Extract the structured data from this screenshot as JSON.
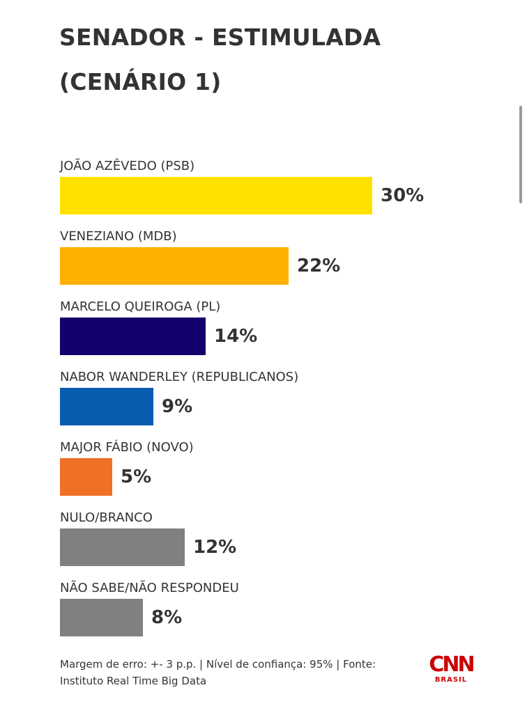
{
  "chart_data": {
    "type": "bar",
    "orientation": "horizontal",
    "title": "SENADOR - ESTIMULADA (CENÁRIO 1)",
    "categories": [
      "JOÃO AZÊVEDO (PSB)",
      "VENEZIANO (MDB)",
      "MARCELO QUEIROGA (PL)",
      "NABOR WANDERLEY (REPUBLICANOS)",
      "MAJOR FÁBIO (NOVO)",
      "NULO/BRANCO",
      "NÃO SABE/NÃO RESPONDEU"
    ],
    "values": [
      30,
      22,
      14,
      9,
      5,
      12,
      8
    ],
    "value_labels": [
      "30%",
      "22%",
      "14%",
      "9%",
      "5%",
      "12%",
      "8%"
    ],
    "colors": [
      "#ffe100",
      "#ffb000",
      "#14006e",
      "#0a5cb0",
      "#f07025",
      "#808080",
      "#808080"
    ],
    "grid": false,
    "legend": "none"
  },
  "footer": {
    "note": "Margem de erro: +- 3 p.p. | Nível de confiança: 95% | Fonte: Instituto Real Time Big Data"
  },
  "logo": {
    "brand": "CNN",
    "sub": "BRASIL",
    "color": "#cc0000"
  }
}
